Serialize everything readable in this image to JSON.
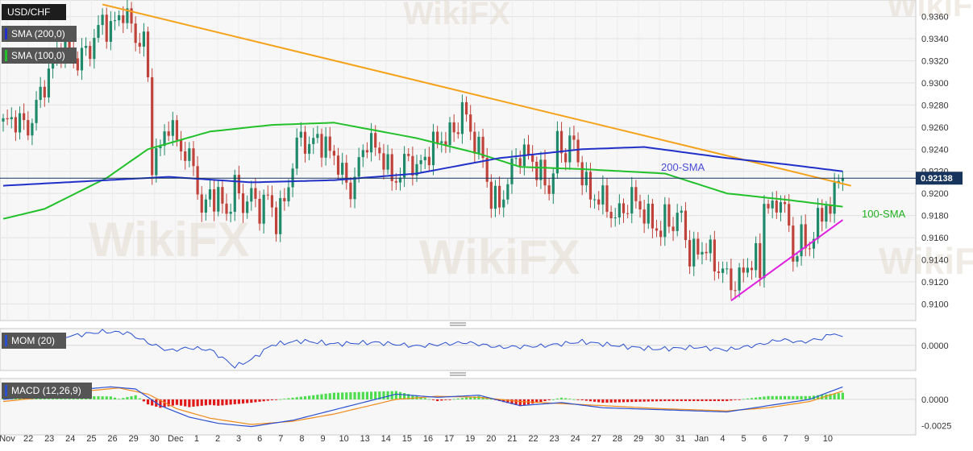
{
  "symbol": "USD/CHF",
  "legend": {
    "sma200": "SMA (200,0)",
    "sma100": "SMA (100,0)",
    "mom": "MOM (20)",
    "macd": "MACD (12,26,9)"
  },
  "annotations": {
    "sma200": "200-SMA",
    "sma100": "100-SMA",
    "last_price": "0.92138"
  },
  "watermark": "WikiFX",
  "colors": {
    "bull": "#1f8a6a",
    "bear": "#c0433b",
    "sma200": "#2030c8",
    "sma100": "#22c02a",
    "resistance": "#f5a21a",
    "support": "#e020e0",
    "mom_line": "#2a4fd0",
    "macd_line": "#2a4fd0",
    "signal_line": "#f08a1a",
    "hist_pos": "#4ddc4d",
    "hist_neg": "#e01818",
    "price_tag": "#16345c"
  },
  "chart_data": [
    {
      "type": "candlestick",
      "title": "USD/CHF",
      "x_tick_labels": [
        "Nov",
        "22",
        "23",
        "24",
        "25",
        "26",
        "29",
        "30",
        "Dec",
        "1",
        "2",
        "3",
        "6",
        "7",
        "8",
        "9",
        "10",
        "13",
        "14",
        "15",
        "16",
        "17",
        "19",
        "20",
        "21",
        "22",
        "23",
        "24",
        "27",
        "28",
        "29",
        "30",
        "31",
        "Jan",
        "4",
        "5",
        "6",
        "7",
        "9",
        "10"
      ],
      "ylim": [
        0.9085,
        0.9375
      ],
      "y_ticks": [
        0.91,
        0.912,
        0.914,
        0.916,
        0.918,
        0.92,
        0.922,
        0.924,
        0.926,
        0.928,
        0.93,
        0.932,
        0.934,
        0.936
      ],
      "ohlc_anchor_points": [
        [
          0,
          0.9262
        ],
        [
          3,
          0.9268
        ],
        [
          6,
          0.9258
        ],
        [
          10,
          0.93
        ],
        [
          14,
          0.9336
        ],
        [
          18,
          0.932
        ],
        [
          21,
          0.9332
        ],
        [
          24,
          0.9356
        ],
        [
          26,
          0.9348
        ],
        [
          29,
          0.9366
        ],
        [
          31,
          0.935
        ],
        [
          33,
          0.9336
        ],
        [
          34,
          0.934
        ],
        [
          35,
          0.93
        ],
        [
          36,
          0.923
        ],
        [
          38,
          0.924
        ],
        [
          40,
          0.9266
        ],
        [
          42,
          0.9246
        ],
        [
          45,
          0.9232
        ],
        [
          47,
          0.921
        ],
        [
          48,
          0.918
        ],
        [
          50,
          0.92
        ],
        [
          52,
          0.9196
        ],
        [
          54,
          0.9182
        ],
        [
          56,
          0.9206
        ],
        [
          58,
          0.919
        ],
        [
          60,
          0.9198
        ],
        [
          62,
          0.9186
        ],
        [
          64,
          0.9196
        ],
        [
          66,
          0.9176
        ],
        [
          68,
          0.9192
        ],
        [
          70,
          0.9228
        ],
        [
          72,
          0.9254
        ],
        [
          74,
          0.924
        ],
        [
          76,
          0.9252
        ],
        [
          78,
          0.924
        ],
        [
          80,
          0.9236
        ],
        [
          82,
          0.9216
        ],
        [
          84,
          0.9203
        ],
        [
          86,
          0.9226
        ],
        [
          88,
          0.925
        ],
        [
          90,
          0.924
        ],
        [
          92,
          0.9233
        ],
        [
          94,
          0.9212
        ],
        [
          96,
          0.9218
        ],
        [
          98,
          0.9234
        ],
        [
          100,
          0.922
        ],
        [
          102,
          0.9233
        ],
        [
          104,
          0.9243
        ],
        [
          106,
          0.925
        ],
        [
          108,
          0.9252
        ],
        [
          110,
          0.9262
        ],
        [
          111,
          0.928
        ],
        [
          112,
          0.9265
        ],
        [
          114,
          0.9248
        ],
        [
          116,
          0.9232
        ],
        [
          117,
          0.9212
        ],
        [
          118,
          0.9196
        ],
        [
          120,
          0.919
        ],
        [
          122,
          0.921
        ],
        [
          124,
          0.9234
        ],
        [
          126,
          0.9236
        ],
        [
          128,
          0.923
        ],
        [
          129,
          0.9223
        ],
        [
          131,
          0.921
        ],
        [
          132,
          0.9203
        ],
        [
          134,
          0.9244
        ],
        [
          136,
          0.9236
        ],
        [
          137,
          0.9248
        ],
        [
          138,
          0.9243
        ],
        [
          140,
          0.9218
        ],
        [
          142,
          0.9196
        ],
        [
          144,
          0.9198
        ],
        [
          146,
          0.9188
        ],
        [
          148,
          0.9178
        ],
        [
          150,
          0.9186
        ],
        [
          152,
          0.9196
        ],
        [
          154,
          0.9188
        ],
        [
          156,
          0.9176
        ],
        [
          158,
          0.917
        ],
        [
          159,
          0.9164
        ],
        [
          160,
          0.9178
        ],
        [
          162,
          0.9173
        ],
        [
          164,
          0.918
        ],
        [
          166,
          0.9143
        ],
        [
          168,
          0.9148
        ],
        [
          170,
          0.9152
        ],
        [
          172,
          0.9136
        ],
        [
          174,
          0.913
        ],
        [
          176,
          0.9118
        ],
        [
          178,
          0.9122
        ],
        [
          180,
          0.9136
        ],
        [
          182,
          0.914
        ],
        [
          183,
          0.913
        ],
        [
          184,
          0.9194
        ],
        [
          186,
          0.9182
        ],
        [
          188,
          0.9198
        ],
        [
          190,
          0.9168
        ],
        [
          191,
          0.9143
        ],
        [
          193,
          0.9158
        ],
        [
          195,
          0.9153
        ],
        [
          197,
          0.9173
        ],
        [
          199,
          0.9193
        ],
        [
          200,
          0.9178
        ],
        [
          201,
          0.9203
        ],
        [
          202,
          0.9218
        ],
        [
          203,
          0.9214
        ]
      ],
      "last_close": 0.92138,
      "overlays": [
        {
          "name": "SMA (200,0)",
          "label": "200-SMA",
          "points": [
            [
              0,
              0.9207
            ],
            [
              20,
              0.9211
            ],
            [
              40,
              0.9215
            ],
            [
              60,
              0.921
            ],
            [
              80,
              0.9212
            ],
            [
              100,
              0.9218
            ],
            [
              120,
              0.9232
            ],
            [
              140,
              0.924
            ],
            [
              155,
              0.9242
            ],
            [
              175,
              0.9232
            ],
            [
              190,
              0.9226
            ],
            [
              203,
              0.922
            ]
          ]
        },
        {
          "name": "SMA (100,0)",
          "label": "100-SMA",
          "points": [
            [
              0,
              0.9177
            ],
            [
              10,
              0.9186
            ],
            [
              25,
              0.9214
            ],
            [
              35,
              0.924
            ],
            [
              50,
              0.9256
            ],
            [
              65,
              0.9262
            ],
            [
              80,
              0.9264
            ],
            [
              100,
              0.925
            ],
            [
              115,
              0.9236
            ],
            [
              125,
              0.9224
            ],
            [
              140,
              0.9222
            ],
            [
              160,
              0.9218
            ],
            [
              175,
              0.92
            ],
            [
              190,
              0.9194
            ],
            [
              203,
              0.9188
            ]
          ]
        },
        {
          "name": "resistance",
          "points": [
            [
              24,
              0.9371
            ],
            [
              205,
              0.9207
            ]
          ]
        },
        {
          "name": "support",
          "points": [
            [
              176,
              0.9103
            ],
            [
              203,
              0.9176
            ]
          ]
        }
      ]
    },
    {
      "type": "line",
      "title": "MOM (20)",
      "y_ticks": [
        0.0
      ],
      "ylim": [
        -0.018,
        0.012
      ],
      "series": [
        {
          "name": "MOM (20)",
          "points": [
            [
              0,
              0.0008
            ],
            [
              8,
              0.004
            ],
            [
              16,
              0.0066
            ],
            [
              24,
              0.0098
            ],
            [
              30,
              0.009
            ],
            [
              35,
              0.002
            ],
            [
              40,
              -0.0038
            ],
            [
              45,
              -0.0018
            ],
            [
              50,
              -0.0032
            ],
            [
              53,
              -0.009
            ],
            [
              56,
              -0.0152
            ],
            [
              60,
              -0.0103
            ],
            [
              65,
              0.0004
            ],
            [
              72,
              0.0032
            ],
            [
              80,
              0.001
            ],
            [
              90,
              0.0021
            ],
            [
              100,
              -0.0006
            ],
            [
              112,
              0.0021
            ],
            [
              120,
              -0.0014
            ],
            [
              130,
              -0.0005
            ],
            [
              140,
              0.0026
            ],
            [
              150,
              -0.0008
            ],
            [
              158,
              -0.0027
            ],
            [
              168,
              -0.0014
            ],
            [
              175,
              -0.0032
            ],
            [
              183,
              0.0006
            ],
            [
              188,
              0.0042
            ],
            [
              193,
              0.0022
            ],
            [
              198,
              0.005
            ],
            [
              201,
              0.009
            ],
            [
              203,
              0.005
            ]
          ]
        }
      ]
    },
    {
      "type": "line",
      "title": "MACD (12,26,9)",
      "y_ticks": [
        0.0,
        -0.0025
      ],
      "ylim": [
        -0.0034,
        0.002
      ],
      "series": [
        {
          "name": "MACD",
          "points": [
            [
              0,
              0.0
            ],
            [
              10,
              0.0004
            ],
            [
              20,
              0.001
            ],
            [
              26,
              0.0012
            ],
            [
              32,
              0.001
            ],
            [
              38,
              -0.0006
            ],
            [
              45,
              -0.0017
            ],
            [
              52,
              -0.0023
            ],
            [
              60,
              -0.0026
            ],
            [
              70,
              -0.002
            ],
            [
              80,
              -0.001
            ],
            [
              95,
              0.0005
            ],
            [
              105,
              0.0002
            ],
            [
              115,
              0.0004
            ],
            [
              125,
              -0.0006
            ],
            [
              135,
              -0.0003
            ],
            [
              145,
              -0.0008
            ],
            [
              160,
              -0.001
            ],
            [
              175,
              -0.0012
            ],
            [
              185,
              -0.0006
            ],
            [
              195,
              0.0
            ],
            [
              203,
              0.0012
            ]
          ]
        },
        {
          "name": "Signal",
          "points": [
            [
              0,
              -0.0002
            ],
            [
              10,
              0.0002
            ],
            [
              20,
              0.0008
            ],
            [
              28,
              0.0011
            ],
            [
              35,
              0.0005
            ],
            [
              42,
              -0.0009
            ],
            [
              50,
              -0.0018
            ],
            [
              60,
              -0.0024
            ],
            [
              70,
              -0.0021
            ],
            [
              80,
              -0.0014
            ],
            [
              95,
              0.0
            ],
            [
              105,
              0.0003
            ],
            [
              115,
              0.0002
            ],
            [
              125,
              -0.0002
            ],
            [
              135,
              -0.0004
            ],
            [
              145,
              -0.0006
            ],
            [
              160,
              -0.0009
            ],
            [
              175,
              -0.0011
            ],
            [
              185,
              -0.0008
            ],
            [
              195,
              -0.0002
            ],
            [
              203,
              0.0008
            ]
          ]
        }
      ]
    }
  ]
}
